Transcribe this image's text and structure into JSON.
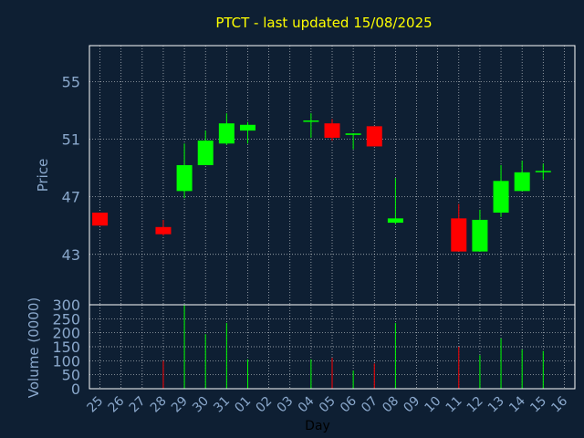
{
  "colors": {
    "background": "#0e1f33",
    "axis": "#ffffff",
    "grid": "#ffffff",
    "up": "#00ff00",
    "down": "#ff0000",
    "tick_text": "#8aa8cc",
    "title_text": "#ffff00"
  },
  "chart_data": {
    "type": "candlestick",
    "title": "PTCT - last updated 15/08/2025",
    "ylabel": "Price",
    "volume_ylabel": "Volume (0000)",
    "xlabel": "Day",
    "ylim": [
      39.5,
      57.5
    ],
    "yticks": [
      43,
      47,
      51,
      55
    ],
    "volume_ylim": [
      0,
      300
    ],
    "volume_yticks": [
      0,
      50,
      100,
      150,
      200,
      250,
      300
    ],
    "grid": true,
    "x": [
      "25",
      "26",
      "27",
      "28",
      "29",
      "30",
      "31",
      "01",
      "02",
      "03",
      "04",
      "05",
      "06",
      "07",
      "08",
      "09",
      "10",
      "11",
      "12",
      "13",
      "14",
      "15",
      "16"
    ],
    "candles": [
      {
        "day": "25",
        "open": 45.9,
        "high": 45.9,
        "low": 45.0,
        "close": 45.0,
        "volume": 0
      },
      {
        "day": "28",
        "open": 44.9,
        "high": 45.4,
        "low": 44.3,
        "close": 44.4,
        "volume": 100
      },
      {
        "day": "29",
        "open": 47.4,
        "high": 50.7,
        "low": 46.9,
        "close": 49.2,
        "volume": 300
      },
      {
        "day": "30",
        "open": 49.2,
        "high": 51.6,
        "low": 49.2,
        "close": 50.9,
        "volume": 195
      },
      {
        "day": "31",
        "open": 50.7,
        "high": 52.8,
        "low": 50.6,
        "close": 52.1,
        "volume": 235
      },
      {
        "day": "01",
        "open": 51.6,
        "high": 52.2,
        "low": 50.7,
        "close": 52.0,
        "volume": 105
      },
      {
        "day": "04",
        "open": 52.3,
        "high": 52.8,
        "low": 51.1,
        "close": 52.3,
        "volume": 105
      },
      {
        "day": "05",
        "open": 52.1,
        "high": 52.4,
        "low": 50.9,
        "close": 51.1,
        "volume": 110
      },
      {
        "day": "06",
        "open": 51.3,
        "high": 51.4,
        "low": 50.3,
        "close": 51.4,
        "volume": 65
      },
      {
        "day": "07",
        "open": 51.9,
        "high": 51.9,
        "low": 50.5,
        "close": 50.5,
        "volume": 90
      },
      {
        "day": "08",
        "open": 45.2,
        "high": 48.3,
        "low": 45.1,
        "close": 45.5,
        "volume": 235
      },
      {
        "day": "11",
        "open": 45.5,
        "high": 46.5,
        "low": 43.2,
        "close": 43.2,
        "volume": 150
      },
      {
        "day": "12",
        "open": 43.2,
        "high": 46.1,
        "low": 43.2,
        "close": 45.4,
        "volume": 120
      },
      {
        "day": "13",
        "open": 45.9,
        "high": 49.2,
        "low": 45.6,
        "close": 48.1,
        "volume": 180
      },
      {
        "day": "14",
        "open": 47.4,
        "high": 49.5,
        "low": 47.4,
        "close": 48.7,
        "volume": 140
      },
      {
        "day": "15",
        "open": 48.8,
        "high": 49.3,
        "low": 48.2,
        "close": 48.8,
        "volume": 135
      }
    ]
  }
}
